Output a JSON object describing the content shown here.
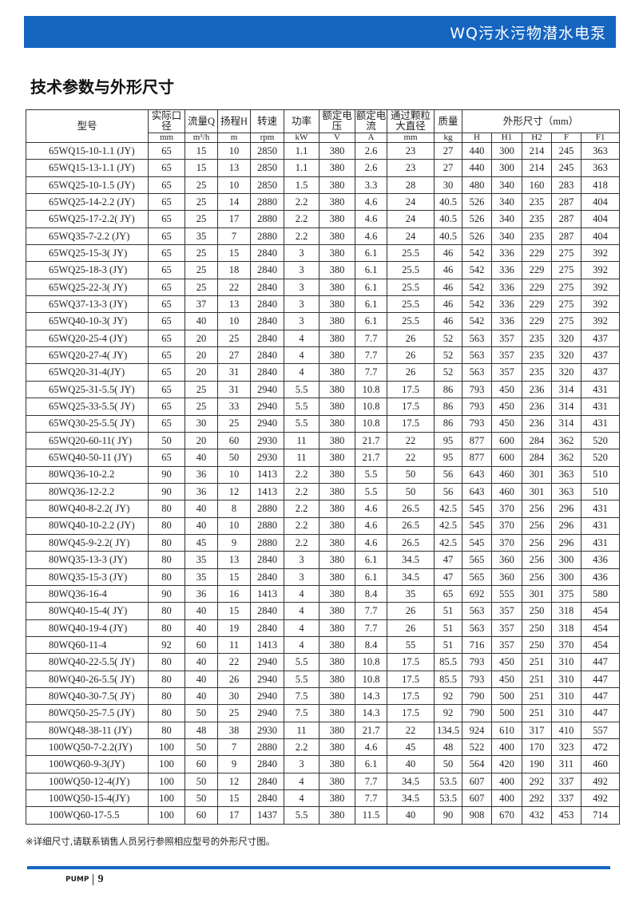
{
  "banner": {
    "title": "WQ污水污物潜水电泵",
    "color": "#1565c0"
  },
  "heading": "技术参数与外形尺寸",
  "table": {
    "header": {
      "model": "型号",
      "cols": [
        "实际口径",
        "流量Q",
        "扬程H",
        "转速",
        "功率",
        "额定电压",
        "额定电流",
        "通过颗粒大直径",
        "质量"
      ],
      "dims": "外形尺寸（mm）"
    },
    "units": [
      "mm",
      "m³/h",
      "m",
      "rpm",
      "kW",
      "V",
      "A",
      "mm",
      "kg",
      "H",
      "H1",
      "H2",
      "F",
      "F1"
    ],
    "rows": [
      [
        "65WQ15-10-1.1 (JY)",
        "65",
        "15",
        "10",
        "2850",
        "1.1",
        "380",
        "2.6",
        "23",
        "27",
        "440",
        "300",
        "214",
        "245",
        "363"
      ],
      [
        "65WQ15-13-1.1 (JY)",
        "65",
        "15",
        "13",
        "2850",
        "1.1",
        "380",
        "2.6",
        "23",
        "27",
        "440",
        "300",
        "214",
        "245",
        "363"
      ],
      [
        "65WQ25-10-1.5 (JY)",
        "65",
        "25",
        "10",
        "2850",
        "1.5",
        "380",
        "3.3",
        "28",
        "30",
        "480",
        "340",
        "160",
        "283",
        "418"
      ],
      [
        "65WQ25-14-2.2 (JY)",
        "65",
        "25",
        "14",
        "2880",
        "2.2",
        "380",
        "4.6",
        "24",
        "40.5",
        "526",
        "340",
        "235",
        "287",
        "404"
      ],
      [
        "65WQ25-17-2.2( JY)",
        "65",
        "25",
        "17",
        "2880",
        "2.2",
        "380",
        "4.6",
        "24",
        "40.5",
        "526",
        "340",
        "235",
        "287",
        "404"
      ],
      [
        "65WQ35-7-2.2 (JY)",
        "65",
        "35",
        "7",
        "2880",
        "2.2",
        "380",
        "4.6",
        "24",
        "40.5",
        "526",
        "340",
        "235",
        "287",
        "404"
      ],
      [
        "65WQ25-15-3( JY)",
        "65",
        "25",
        "15",
        "2840",
        "3",
        "380",
        "6.1",
        "25.5",
        "46",
        "542",
        "336",
        "229",
        "275",
        "392"
      ],
      [
        "65WQ25-18-3 (JY)",
        "65",
        "25",
        "18",
        "2840",
        "3",
        "380",
        "6.1",
        "25.5",
        "46",
        "542",
        "336",
        "229",
        "275",
        "392"
      ],
      [
        "65WQ25-22-3( JY)",
        "65",
        "25",
        "22",
        "2840",
        "3",
        "380",
        "6.1",
        "25.5",
        "46",
        "542",
        "336",
        "229",
        "275",
        "392"
      ],
      [
        "65WQ37-13-3 (JY)",
        "65",
        "37",
        "13",
        "2840",
        "3",
        "380",
        "6.1",
        "25.5",
        "46",
        "542",
        "336",
        "229",
        "275",
        "392"
      ],
      [
        "65WQ40-10-3( JY)",
        "65",
        "40",
        "10",
        "2840",
        "3",
        "380",
        "6.1",
        "25.5",
        "46",
        "542",
        "336",
        "229",
        "275",
        "392"
      ],
      [
        "65WQ20-25-4 (JY)",
        "65",
        "20",
        "25",
        "2840",
        "4",
        "380",
        "7.7",
        "26",
        "52",
        "563",
        "357",
        "235",
        "320",
        "437"
      ],
      [
        "65WQ20-27-4( JY)",
        "65",
        "20",
        "27",
        "2840",
        "4",
        "380",
        "7.7",
        "26",
        "52",
        "563",
        "357",
        "235",
        "320",
        "437"
      ],
      [
        "65WQ20-31-4(JY)",
        "65",
        "20",
        "31",
        "2840",
        "4",
        "380",
        "7.7",
        "26",
        "52",
        "563",
        "357",
        "235",
        "320",
        "437"
      ],
      [
        "65WQ25-31-5.5( JY)",
        "65",
        "25",
        "31",
        "2940",
        "5.5",
        "380",
        "10.8",
        "17.5",
        "86",
        "793",
        "450",
        "236",
        "314",
        "431"
      ],
      [
        "65WQ25-33-5.5( JY)",
        "65",
        "25",
        "33",
        "2940",
        "5.5",
        "380",
        "10.8",
        "17.5",
        "86",
        "793",
        "450",
        "236",
        "314",
        "431"
      ],
      [
        "65WQ30-25-5.5( JY)",
        "65",
        "30",
        "25",
        "2940",
        "5.5",
        "380",
        "10.8",
        "17.5",
        "86",
        "793",
        "450",
        "236",
        "314",
        "431"
      ],
      [
        "65WQ20-60-11( JY)",
        "50",
        "20",
        "60",
        "2930",
        "11",
        "380",
        "21.7",
        "22",
        "95",
        "877",
        "600",
        "284",
        "362",
        "520"
      ],
      [
        "65WQ40-50-11 (JY)",
        "65",
        "40",
        "50",
        "2930",
        "11",
        "380",
        "21.7",
        "22",
        "95",
        "877",
        "600",
        "284",
        "362",
        "520"
      ],
      [
        "80WQ36-10-2.2",
        "90",
        "36",
        "10",
        "1413",
        "2.2",
        "380",
        "5.5",
        "50",
        "56",
        "643",
        "460",
        "301",
        "363",
        "510"
      ],
      [
        " 80WQ36-12-2.2",
        "90",
        "36",
        "12",
        "1413",
        "2.2",
        "380",
        "5.5",
        "50",
        "56",
        "643",
        "460",
        "301",
        "363",
        "510"
      ],
      [
        "80WQ40-8-2.2( JY)",
        "80",
        "40",
        "8",
        "2880",
        "2.2",
        "380",
        "4.6",
        "26.5",
        "42.5",
        "545",
        "370",
        "256",
        "296",
        "431"
      ],
      [
        "80WQ40-10-2.2 (JY)",
        "80",
        "40",
        "10",
        "2880",
        "2.2",
        "380",
        "4.6",
        "26.5",
        "42.5",
        "545",
        "370",
        "256",
        "296",
        "431"
      ],
      [
        "80WQ45-9-2.2( JY)",
        "80",
        "45",
        "9",
        "2880",
        "2.2",
        "380",
        "4.6",
        "26.5",
        "42.5",
        "545",
        "370",
        "256",
        "296",
        "431"
      ],
      [
        "80WQ35-13-3 (JY)",
        "80",
        "35",
        "13",
        "2840",
        "3",
        "380",
        "6.1",
        "34.5",
        "47",
        "565",
        "360",
        "256",
        "300",
        "436"
      ],
      [
        "80WQ35-15-3 (JY)",
        "80",
        "35",
        "15",
        "2840",
        "3",
        "380",
        "6.1",
        "34.5",
        "47",
        "565",
        "360",
        "256",
        "300",
        "436"
      ],
      [
        "80WQ36-16-4",
        "90",
        "36",
        "16",
        "1413",
        "4",
        "380",
        "8.4",
        "35",
        "65",
        "692",
        "555",
        "301",
        "375",
        "580"
      ],
      [
        "80WQ40-15-4( JY)",
        "80",
        "40",
        "15",
        "2840",
        "4",
        "380",
        "7.7",
        "26",
        "51",
        "563",
        "357",
        "250",
        "318",
        "454"
      ],
      [
        "80WQ40-19-4 (JY)",
        "80",
        "40",
        "19",
        "2840",
        "4",
        "380",
        "7.7",
        "26",
        "51",
        "563",
        "357",
        "250",
        "318",
        "454"
      ],
      [
        "80WQ60-11-4",
        "92",
        "60",
        "11",
        "1413",
        "4",
        "380",
        "8.4",
        "55",
        "51",
        "716",
        "357",
        "250",
        "370",
        "454"
      ],
      [
        "80WQ40-22-5.5( JY)",
        "80",
        "40",
        "22",
        "2940",
        "5.5",
        "380",
        "10.8",
        "17.5",
        "85.5",
        "793",
        "450",
        "251",
        "310",
        "447"
      ],
      [
        "80WQ40-26-5.5( JY)",
        "80",
        "40",
        "26",
        "2940",
        "5.5",
        "380",
        "10.8",
        "17.5",
        "85.5",
        "793",
        "450",
        "251",
        "310",
        "447"
      ],
      [
        "80WQ40-30-7.5( JY)",
        "80",
        "40",
        "30",
        "2940",
        "7.5",
        "380",
        "14.3",
        "17.5",
        "92",
        "790",
        "500",
        "251",
        "310",
        "447"
      ],
      [
        "80WQ50-25-7.5 (JY)",
        "80",
        "50",
        "25",
        "2940",
        "7.5",
        "380",
        "14.3",
        "17.5",
        "92",
        "790",
        "500",
        "251",
        "310",
        "447"
      ],
      [
        "80WQ48-38-11 (JY)",
        "80",
        "48",
        "38",
        "2930",
        "11",
        "380",
        "21.7",
        "22",
        "134.5",
        "924",
        "610",
        "317",
        "410",
        "557"
      ],
      [
        "100WQ50-7-2.2(JY)",
        "100",
        "50",
        "7",
        "2880",
        "2.2",
        "380",
        "4.6",
        "45",
        "48",
        "522",
        "400",
        "170",
        "323",
        "472"
      ],
      [
        "100WQ60-9-3(JY)",
        "100",
        "60",
        "9",
        "2840",
        "3",
        "380",
        "6.1",
        "40",
        "50",
        "564",
        "420",
        "190",
        "311",
        "460"
      ],
      [
        "100WQ50-12-4(JY)",
        "100",
        "50",
        "12",
        "2840",
        "4",
        "380",
        "7.7",
        "34.5",
        "53.5",
        "607",
        "400",
        "292",
        "337",
        "492"
      ],
      [
        "100WQ50-15-4(JY)",
        "100",
        "50",
        "15",
        "2840",
        "4",
        "380",
        "7.7",
        "34.5",
        "53.5",
        "607",
        "400",
        "292",
        "337",
        "492"
      ],
      [
        "100WQ60-17-5.5",
        "100",
        "60",
        "17",
        "1437",
        "5.5",
        "380",
        "11.5",
        "40",
        "90",
        "908",
        "670",
        "432",
        "453",
        "714"
      ]
    ]
  },
  "footnote": "※详细尺寸,请联系销售人员另行参照相应型号的外形尺寸图。",
  "footer": {
    "brand": "PUMP",
    "page": "9"
  }
}
